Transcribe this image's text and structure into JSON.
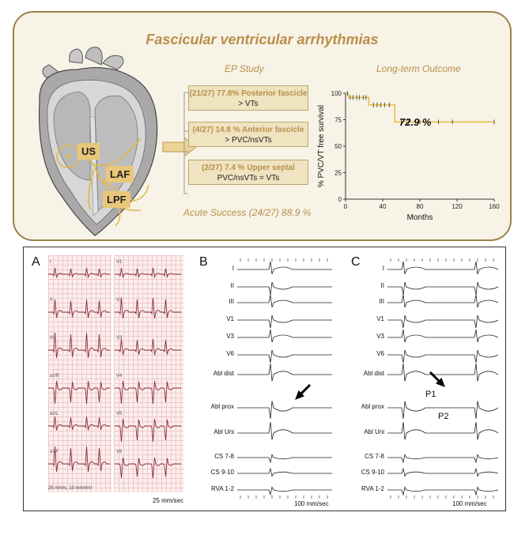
{
  "abstract": {
    "title": "Fascicular ventricular arrhythmias",
    "heart_labels": {
      "us": "US",
      "laf": "LAF",
      "lpf": "LPF"
    },
    "ep_study": {
      "title": "EP Study",
      "boxes": [
        {
          "pct": "(21/27) 77.8% Posterior fascicle",
          "desc": "> VTs"
        },
        {
          "pct": "(4/27) 14.8 % Anterior fascicle",
          "desc": "> PVC/nsVTs"
        },
        {
          "pct": "(2/27) 7.4 % Upper septal",
          "desc": "PVC/nsVTs = VTs"
        }
      ],
      "acute_success": "Acute Success (24/27) 88.9 %"
    },
    "outcome": {
      "title": "Long-term Outcome",
      "value_label": "72.9 %"
    }
  },
  "chart_data": {
    "type": "line",
    "title": "Long-term Outcome",
    "xlabel": "Months",
    "ylabel": "% PVC/VT free survival",
    "xlim": [
      0,
      160
    ],
    "ylim": [
      0,
      100
    ],
    "xticks": [
      0,
      40,
      80,
      120,
      160
    ],
    "yticks": [
      0,
      25,
      50,
      75,
      100
    ],
    "series": [
      {
        "step_x": [
          0,
          3,
          25,
          53,
          160
        ],
        "step_y": [
          100,
          96,
          89,
          72.9,
          72.9
        ],
        "censored_x": [
          2,
          5,
          8,
          12,
          15,
          19,
          22,
          30,
          34,
          38,
          42,
          47,
          60,
          68,
          80,
          100,
          115,
          160
        ]
      }
    ],
    "annotation": "72.9 %",
    "color": "#e6c24a"
  },
  "bottom": {
    "panel_a": {
      "letter": "A",
      "leads_left": [
        "I",
        "II",
        "III",
        "aVR",
        "aVL",
        "aVF"
      ],
      "leads_right": [
        "V1",
        "V2",
        "V3",
        "V4",
        "V5",
        "V6"
      ],
      "caption": "25 mm/s, 10 mm/mV",
      "speed": "25 mm/sec"
    },
    "panel_b": {
      "letter": "B",
      "labels": [
        "I",
        "II",
        "III",
        "V1",
        "V3",
        "V6",
        "Abl dist",
        "Abl prox",
        "Abl Uni",
        "CS 7-8",
        "CS 9-10",
        "RVA 1-2"
      ],
      "speed": "100 mm/sec"
    },
    "panel_c": {
      "letter": "C",
      "labels": [
        "I",
        "II",
        "III",
        "V1",
        "V3",
        "V6",
        "Abl dist",
        "Abl prox",
        "Abl Uni",
        "CS 7-8",
        "CS 9-10",
        "RVA 1-2"
      ],
      "speed": "100 mm/sec",
      "p1": "P1",
      "p2": "P2"
    }
  }
}
